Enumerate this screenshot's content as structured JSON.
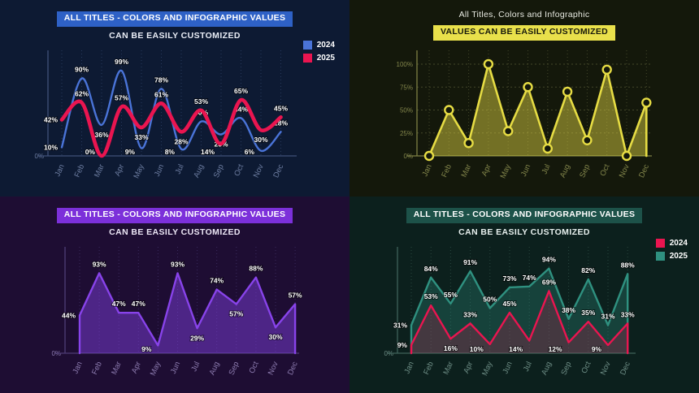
{
  "panels": [
    {
      "name": "top-left-line-chart",
      "highlight_title": "ALL TITLES - COLORS AND INFOGRAPHIC VALUES",
      "subtitle": "CAN BE EASILY CUSTOMIZED",
      "colors": {
        "background": "#0d1a33",
        "highlight_bg": "#2e61c6",
        "highlight_text": "#ffffff",
        "subtitle_text": "#e9edf6",
        "axis": "#3f5078",
        "grid": "#27395c",
        "tick_text": "#6d7da1",
        "data_label": "#ffffff"
      },
      "legend": [
        {
          "label": "2024",
          "color": "#4a74d8"
        },
        {
          "label": "2025",
          "color": "#ea1550"
        }
      ]
    },
    {
      "name": "top-right-area-chart",
      "plain_title": "All Titles, Colors and Infographic",
      "highlight_title": "VALUES CAN BE EASILY CUSTOMIZED",
      "colors": {
        "background": "#14180b",
        "highlight_bg": "#e9e04b",
        "highlight_text": "#181a0c",
        "plain_title_text": "#e8eae2",
        "axis": "#7d8045",
        "grid": "#44472a",
        "tick_text": "#83864b",
        "data_label": "#ffffff"
      }
    },
    {
      "name": "bottom-left-area-chart",
      "highlight_title": "ALL TITLES - COLORS AND INFOGRAPHIC VALUES",
      "subtitle": "CAN BE EASILY CUSTOMIZED",
      "colors": {
        "background": "#1e0d33",
        "highlight_bg": "#7c30da",
        "highlight_text": "#ffffff",
        "subtitle_text": "#ece6f5",
        "axis": "#4e3d75",
        "grid": "#3a2a5e",
        "tick_text": "#8d7cb0",
        "data_label": "#ffffff"
      }
    },
    {
      "name": "bottom-right-area-chart",
      "highlight_title": "ALL TITLES - COLORS AND INFOGRAPHIC VALUES",
      "subtitle": "CAN BE EASILY CUSTOMIZED",
      "colors": {
        "background": "#0c201d",
        "highlight_bg": "#1d5249",
        "highlight_text": "#ffffff",
        "subtitle_text": "#e6efed",
        "axis": "#3f625a",
        "grid": "#28473f",
        "tick_text": "#6e8e86",
        "data_label": "#ffffff"
      },
      "legend": [
        {
          "label": "2024",
          "color": "#ea1550"
        },
        {
          "label": "2025",
          "color": "#2f9180"
        }
      ]
    }
  ],
  "chart_data": [
    {
      "type": "line",
      "panel": "top-left-line-chart",
      "title": "ALL TITLES - COLORS AND INFOGRAPHIC VALUES",
      "subtitle": "CAN BE EASILY CUSTOMIZED",
      "categories": [
        "Jan",
        "Feb",
        "Mar",
        "Apr",
        "May",
        "Jun",
        "Jul",
        "Aug",
        "Sep",
        "Oct",
        "Nov",
        "Dec"
      ],
      "ylim": [
        0,
        100
      ],
      "grid": "vertical-dotted",
      "legend_position": "top-right",
      "smooth": true,
      "fill": false,
      "markers": false,
      "show_labels": true,
      "y_ticks": [
        {
          "label": "0%",
          "value": 0
        }
      ],
      "series": [
        {
          "name": "2024",
          "color": "#4a74d8",
          "values": [
            10,
            90,
            36,
            99,
            9,
            78,
            8,
            40,
            25,
            44,
            6,
            28
          ]
        },
        {
          "name": "2025",
          "color": "#ea1550",
          "values": [
            42,
            62,
            0,
            57,
            33,
            61,
            28,
            53,
            14,
            65,
            30,
            45
          ]
        }
      ]
    },
    {
      "type": "area",
      "panel": "top-right-area-chart",
      "title": "All Titles, Colors and Infographic",
      "subtitle": "VALUES CAN BE EASILY CUSTOMIZED",
      "categories": [
        "Jan",
        "Feb",
        "Mar",
        "Apr",
        "May",
        "Jun",
        "Jul",
        "Aug",
        "Sep",
        "Oct",
        "Nov",
        "Dec"
      ],
      "ylim": [
        0,
        100
      ],
      "grid": "both-dotted",
      "smooth": false,
      "fill": true,
      "markers": true,
      "show_labels": false,
      "y_ticks": [
        {
          "label": "0%",
          "value": 0
        },
        {
          "label": "25%",
          "value": 25
        },
        {
          "label": "50%",
          "value": 50
        },
        {
          "label": "75%",
          "value": 75
        },
        {
          "label": "100%",
          "value": 100
        }
      ],
      "series": [
        {
          "name": "values",
          "color": "#e6dc44",
          "fill_opacity": 0.45,
          "values": [
            0,
            50,
            14,
            100,
            27,
            75,
            8,
            70,
            17,
            94,
            0,
            58
          ]
        }
      ]
    },
    {
      "type": "area",
      "panel": "bottom-left-area-chart",
      "title": "ALL TITLES - COLORS AND INFOGRAPHIC VALUES",
      "subtitle": "CAN BE EASILY CUSTOMIZED",
      "categories": [
        "Jan",
        "Feb",
        "Mar",
        "Apr",
        "May",
        "Jun",
        "Jul",
        "Aug",
        "Sep",
        "Oct",
        "Nov",
        "Dec"
      ],
      "ylim": [
        0,
        100
      ],
      "grid": "vertical-dotted",
      "smooth": false,
      "fill": true,
      "markers": false,
      "show_labels": true,
      "y_ticks": [
        {
          "label": "0%",
          "value": 0
        }
      ],
      "series": [
        {
          "name": "values",
          "color": "#8843ea",
          "fill_opacity": 0.45,
          "values": [
            44,
            93,
            47,
            47,
            9,
            93,
            29,
            74,
            57,
            88,
            30,
            57
          ]
        }
      ]
    },
    {
      "type": "area",
      "panel": "bottom-right-area-chart",
      "title": "ALL TITLES - COLORS AND INFOGRAPHIC VALUES",
      "subtitle": "CAN BE EASILY CUSTOMIZED",
      "categories": [
        "Jan",
        "Feb",
        "Mar",
        "Apr",
        "May",
        "Jun",
        "Jul",
        "Aug",
        "Sep",
        "Oct",
        "Nov",
        "Dec"
      ],
      "ylim": [
        0,
        100
      ],
      "grid": "vertical-dotted",
      "legend_position": "top-right",
      "smooth": false,
      "fill": true,
      "markers": false,
      "show_labels": true,
      "y_ticks": [
        {
          "label": "0%",
          "value": 0
        }
      ],
      "series": [
        {
          "name": "2025",
          "color": "#2f9180",
          "fill_opacity": 0.3,
          "labels_above": true,
          "values": [
            31,
            84,
            55,
            91,
            50,
            73,
            74,
            94,
            38,
            82,
            31,
            88
          ]
        },
        {
          "name": "2024",
          "color": "#ea1550",
          "fill_opacity": 0.22,
          "values": [
            9,
            53,
            16,
            33,
            10,
            45,
            14,
            69,
            12,
            35,
            9,
            33
          ]
        }
      ]
    }
  ]
}
